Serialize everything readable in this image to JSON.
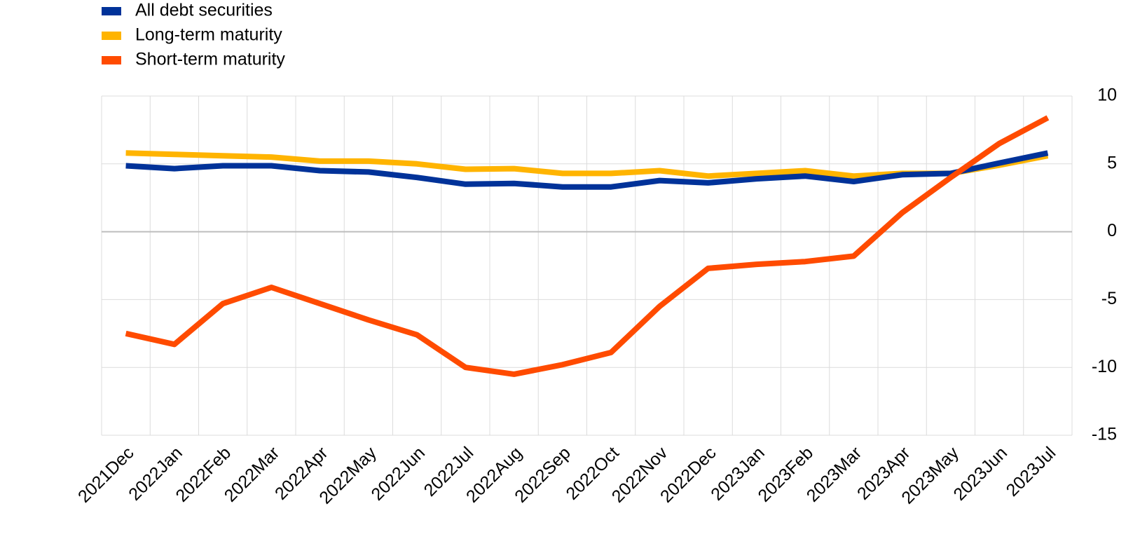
{
  "chart_data": {
    "type": "line",
    "categories": [
      "2021Dec",
      "2022Jan",
      "2022Feb",
      "2022Mar",
      "2022Apr",
      "2022May",
      "2022Jun",
      "2022Jul",
      "2022Aug",
      "2022Sep",
      "2022Oct",
      "2022Nov",
      "2022Dec",
      "2023Jan",
      "2023Feb",
      "2023Mar",
      "2023Apr",
      "2023May",
      "2023Jun",
      "2023Jul"
    ],
    "series": [
      {
        "name": "All debt securities",
        "color": "#003299",
        "values": [
          4.86,
          4.65,
          4.86,
          4.86,
          4.5,
          4.4,
          4.0,
          3.5,
          3.56,
          3.3,
          3.3,
          3.77,
          3.6,
          3.9,
          4.1,
          3.7,
          4.2,
          4.3,
          5.06,
          5.8
        ]
      },
      {
        "name": "Long-term maturity",
        "color": "#ffb400",
        "values": [
          5.8,
          5.7,
          5.6,
          5.5,
          5.2,
          5.2,
          5.0,
          4.6,
          4.65,
          4.3,
          4.3,
          4.5,
          4.1,
          4.3,
          4.5,
          4.1,
          4.3,
          4.3,
          4.9,
          5.6
        ]
      },
      {
        "name": "Short-term maturity",
        "color": "#ff4b00",
        "values": [
          -7.5,
          -8.3,
          -5.3,
          -4.1,
          -5.3,
          -6.5,
          -7.6,
          -10.0,
          -10.5,
          -9.8,
          -8.9,
          -5.5,
          -2.7,
          -2.4,
          -2.2,
          -1.8,
          1.4,
          4.0,
          6.5,
          8.4
        ]
      }
    ],
    "ylim": [
      -15,
      10
    ],
    "yticks": [
      10,
      5,
      0,
      -5,
      -10,
      -15
    ],
    "grid": true
  }
}
